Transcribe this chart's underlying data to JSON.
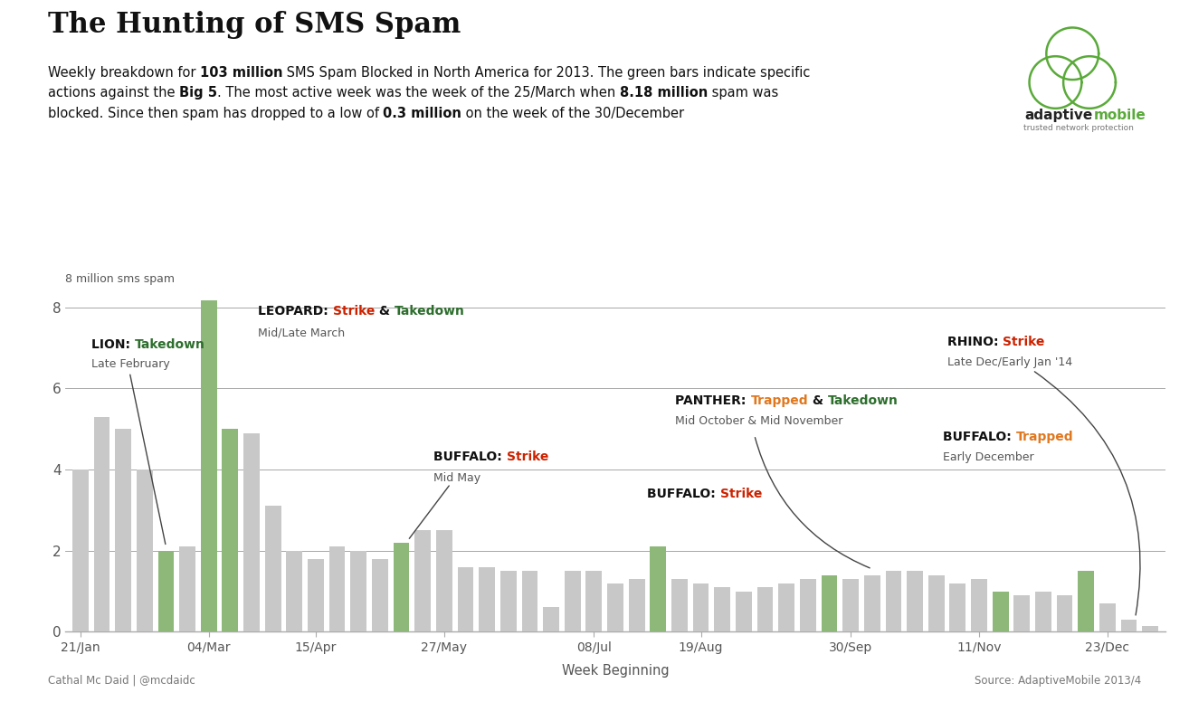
{
  "title": "The Hunting of SMS Spam",
  "bar_values": [
    4.0,
    5.3,
    5.0,
    4.0,
    2.0,
    2.1,
    8.18,
    5.0,
    4.9,
    3.1,
    2.0,
    1.8,
    2.1,
    2.0,
    1.8,
    2.2,
    2.5,
    2.5,
    1.6,
    1.6,
    1.5,
    1.5,
    0.6,
    1.5,
    1.5,
    1.2,
    1.3,
    2.1,
    1.3,
    1.2,
    1.1,
    1.0,
    1.1,
    1.2,
    1.3,
    1.4,
    1.3,
    1.4,
    1.5,
    1.5,
    1.4,
    1.2,
    1.3,
    1.0,
    0.9,
    1.0,
    0.9,
    1.5,
    0.7,
    0.3,
    0.15
  ],
  "bar_colors_key": [
    "g",
    "g",
    "g",
    "g",
    "G",
    "g",
    "G",
    "G",
    "g",
    "g",
    "g",
    "g",
    "g",
    "g",
    "g",
    "G",
    "g",
    "g",
    "g",
    "g",
    "g",
    "g",
    "g",
    "g",
    "g",
    "g",
    "g",
    "G",
    "g",
    "g",
    "g",
    "g",
    "g",
    "g",
    "g",
    "G",
    "g",
    "g",
    "g",
    "g",
    "g",
    "g",
    "g",
    "G",
    "g",
    "g",
    "g",
    "G",
    "g",
    "g",
    "g"
  ],
  "gray_color": "#c8c8c8",
  "green_color": "#8db87a",
  "yticks": [
    0,
    2,
    4,
    6,
    8
  ],
  "xtick_labels": [
    "21/Jan",
    "04/Mar",
    "15/Apr",
    "27/May",
    "08/Jul",
    "19/Aug",
    "30/Sep",
    "11/Nov",
    "23/Dec"
  ],
  "xtick_positions": [
    0,
    6,
    11,
    17,
    24,
    29,
    36,
    42,
    48
  ],
  "ylabel_text": "8 million sms spam",
  "xlabel_text": "Week Beginning",
  "footer_left": "Cathal Mc Daid | @mcdaidc",
  "footer_right": "Source: AdaptiveMobile 2013/4",
  "background_color": "#ffffff",
  "text_dark": "#111111",
  "text_medium": "#555555",
  "green_text": "#2d6e2d",
  "red_text": "#cc2200",
  "orange_text": "#e07820",
  "logo_green": "#5aaa3a"
}
